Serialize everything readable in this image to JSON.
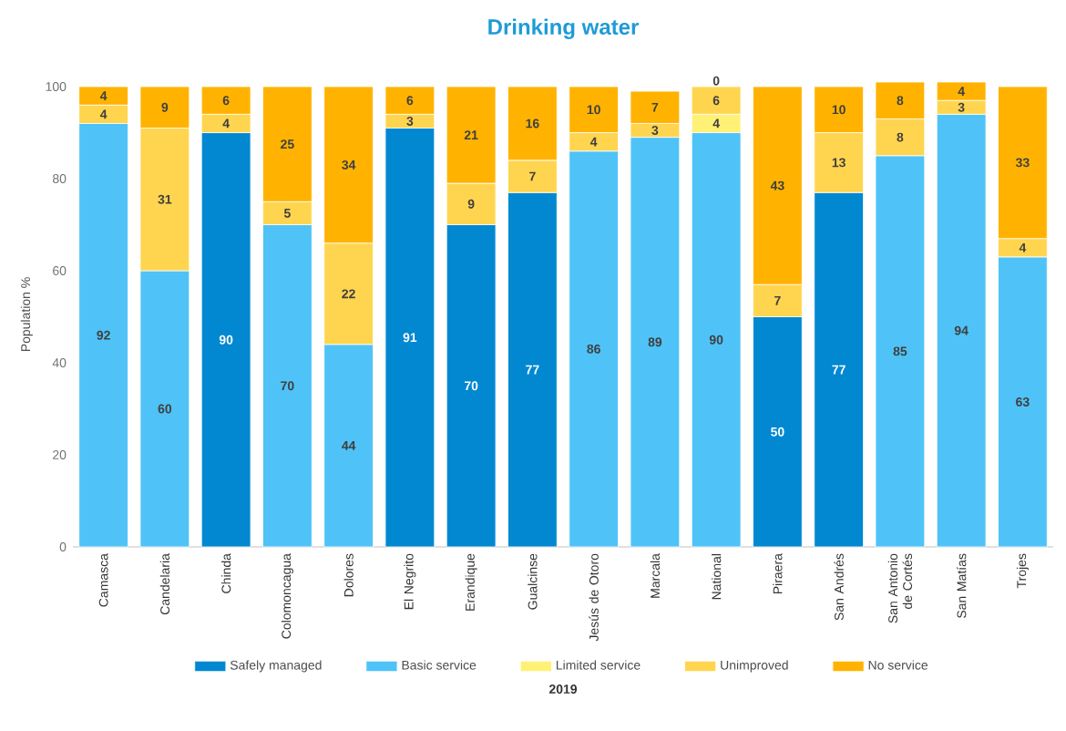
{
  "chart_data": {
    "type": "bar",
    "title": "Drinking water",
    "xlabel": "2019",
    "ylabel": "Population %",
    "categories": [
      "Camasca",
      "Candelaria",
      "Chinda",
      "Colomoncagua",
      "Dolores",
      "El Negrito",
      "Erandique",
      "Gualcinse",
      "Jesús de Otoro",
      "Marcala",
      "National",
      "Piraera",
      "San Andrés",
      "San Antonio de Cortés",
      "San Matías",
      "Trojes"
    ],
    "stacked": true,
    "data_labels": true,
    "legend": "bottom",
    "grid": false,
    "ylim": [
      0,
      101
    ],
    "yticks": [
      0,
      20,
      40,
      60,
      80,
      100
    ],
    "series": [
      {
        "name": "Safely managed",
        "color": "#0288d1",
        "values": [
          null,
          null,
          90,
          null,
          null,
          91,
          70,
          77,
          null,
          null,
          null,
          50,
          77,
          null,
          null,
          null
        ]
      },
      {
        "name": "Basic service",
        "color": "#4fc3f7",
        "values": [
          92,
          60,
          null,
          70,
          44,
          null,
          null,
          null,
          86,
          89,
          90,
          null,
          null,
          85,
          94,
          63
        ]
      },
      {
        "name": "Limited service",
        "color": "#fff176",
        "values": [
          null,
          null,
          null,
          null,
          null,
          null,
          null,
          null,
          null,
          null,
          4,
          null,
          null,
          null,
          null,
          null
        ]
      },
      {
        "name": "Unimproved",
        "color": "#ffd54f",
        "values": [
          4,
          31,
          4,
          5,
          22,
          3,
          9,
          7,
          4,
          3,
          6,
          7,
          13,
          8,
          3,
          4
        ]
      },
      {
        "name": "No service",
        "color": "#ffb300",
        "values": [
          4,
          9,
          6,
          25,
          34,
          6,
          21,
          16,
          10,
          7,
          0,
          43,
          10,
          8,
          4,
          33
        ]
      }
    ]
  }
}
